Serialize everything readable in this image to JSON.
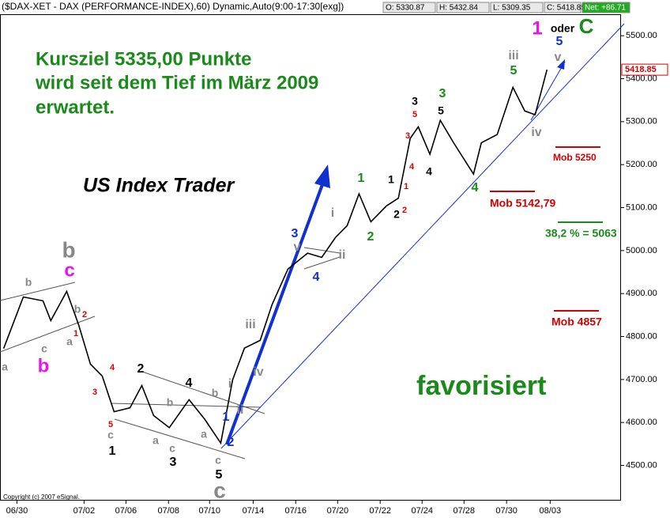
{
  "chart_data": {
    "type": "line",
    "title": "($DAX-XET - DAX (PERFORMANCE-INDEX),60) Dynamic,Auto(9:00-17:30[exg])",
    "quote": [
      "O: 5330.87",
      "H: 5432.84",
      "L: 5309.35",
      "C: 5418.85",
      "Net: +86.71"
    ],
    "last_label": "5418.85",
    "color": "#000000",
    "x": [
      -0.63,
      0.3,
      1.23,
      1.6,
      2.35,
      2.91,
      3.47,
      4.03,
      4.59,
      5.34,
      5.9,
      6.46,
      7.2,
      8.13,
      8.88,
      9.63,
      10.19,
      10.75,
      11.49,
      12.05,
      12.8,
      13.73,
      14.4,
      15.04,
      15.6,
      16.16,
      16.72,
      17.46,
      18.02,
      18.58,
      18.96,
      19.51,
      20.0,
      20.63,
      21.57,
      21.94,
      22.69,
      23.43,
      23.99,
      24.48,
      25.04
    ],
    "values": [
      4772,
      4892,
      4883,
      4837,
      4905,
      4828,
      4736,
      4708,
      4625,
      4634,
      4686,
      4616,
      4588,
      4653,
      4607,
      4552,
      4699,
      4773,
      4791,
      4874,
      4957,
      4994,
      4984,
      5030,
      5058,
      5132,
      5067,
      5104,
      5122,
      5261,
      5288,
      5224,
      5303,
      5251,
      5178,
      5251,
      5270,
      5380,
      5325,
      5316,
      5421
    ],
    "xlim": [
      -0.8,
      28.5
    ],
    "xticks": [
      {
        "value": 0,
        "label": "06/30"
      },
      {
        "value": 3.17,
        "label": "07/02"
      },
      {
        "value": 5.15,
        "label": "07/06"
      },
      {
        "value": 7.16,
        "label": "07/08"
      },
      {
        "value": 9.1,
        "label": "07/10"
      },
      {
        "value": 11.16,
        "label": "07/14"
      },
      {
        "value": 13.17,
        "label": "07/16"
      },
      {
        "value": 15.15,
        "label": "07/20"
      },
      {
        "value": 17.16,
        "label": "07/22"
      },
      {
        "value": 19.14,
        "label": "07/24"
      },
      {
        "value": 21.12,
        "label": "07/28"
      },
      {
        "value": 23.13,
        "label": "07/30"
      },
      {
        "value": 25.19,
        "label": "08/03"
      }
    ],
    "ylim": [
      4420,
      5550
    ],
    "yticks": [
      {
        "value": 4500,
        "label": "4500.00"
      },
      {
        "value": 4600,
        "label": "4600.00"
      },
      {
        "value": 4700,
        "label": "4700.00"
      },
      {
        "value": 4800,
        "label": "4800.00"
      },
      {
        "value": 4900,
        "label": "4900.00"
      },
      {
        "value": 5000,
        "label": "5000.00"
      },
      {
        "value": 5100,
        "label": "5100.00"
      },
      {
        "value": 5200,
        "label": "5200.00"
      },
      {
        "value": 5300,
        "label": "5300.00"
      },
      {
        "value": 5400,
        "label": "5400.00"
      },
      {
        "value": 5500,
        "label": "5500.00"
      }
    ],
    "notes": [
      {
        "text": "Kursziel 5335,00 Punkte",
        "color": "#1a8a1a"
      },
      {
        "text": "wird seit dem Tief im März 2009",
        "color": "#1a8a1a"
      },
      {
        "text": "erwartet.",
        "color": "#1a8a1a"
      },
      {
        "text": "US Index Trader",
        "color": "#000000"
      },
      {
        "text": "favorisiert",
        "color": "#1a8a1a"
      },
      {
        "text": "Mob 5250",
        "color": "#d40000"
      },
      {
        "text": "Mob 5142,79",
        "color": "#d40000"
      },
      {
        "text": "38,2 % = 5063",
        "color": "#1a8a1a"
      },
      {
        "text": "Mob 4857",
        "color": "#d40000"
      },
      {
        "text": "Copyright (c) 2007 eSignal.",
        "color": "#000000"
      }
    ],
    "annotations": [
      {
        "text": "a",
        "color": "#888888"
      },
      {
        "text": "b",
        "color": "#888888"
      },
      {
        "text": "c",
        "color": "#888888"
      },
      {
        "text": "a",
        "color": "#888888"
      },
      {
        "text": "b",
        "color": "#888888"
      },
      {
        "text": "c",
        "color": "#888888"
      },
      {
        "text": "a",
        "color": "#888888"
      },
      {
        "text": "b",
        "color": "#888888"
      },
      {
        "text": "c",
        "color": "#888888"
      },
      {
        "text": "a",
        "color": "#888888"
      },
      {
        "text": "b",
        "color": "#888888"
      },
      {
        "text": "c",
        "color": "#888888"
      },
      {
        "text": "1",
        "color": "#e00000"
      },
      {
        "text": "2",
        "color": "#e00000"
      },
      {
        "text": "3",
        "color": "#e00000"
      },
      {
        "text": "4",
        "color": "#e00000"
      },
      {
        "text": "5",
        "color": "#e00000"
      },
      {
        "text": "1",
        "color": "#000000"
      },
      {
        "text": "2",
        "color": "#000000"
      },
      {
        "text": "3",
        "color": "#000000"
      },
      {
        "text": "4",
        "color": "#000000"
      },
      {
        "text": "5",
        "color": "#000000"
      },
      {
        "text": "b",
        "color": "#ee11ee"
      },
      {
        "text": "c",
        "color": "#ee11ee"
      },
      {
        "text": "1",
        "color": "#ee11ee"
      },
      {
        "text": "b",
        "color": "#888888"
      },
      {
        "text": "c",
        "color": "#888888"
      },
      {
        "text": "1",
        "color": "#1030d0"
      },
      {
        "text": "2",
        "color": "#1030d0"
      },
      {
        "text": "3",
        "color": "#1030d0"
      },
      {
        "text": "4",
        "color": "#1030d0"
      },
      {
        "text": "5",
        "color": "#1030d0"
      },
      {
        "text": "i",
        "color": "#888888"
      },
      {
        "text": "ii",
        "color": "#888888"
      },
      {
        "text": "iii",
        "color": "#888888"
      },
      {
        "text": "iv",
        "color": "#888888"
      },
      {
        "text": "v",
        "color": "#888888"
      },
      {
        "text": "i",
        "color": "#888888"
      },
      {
        "text": "ii",
        "color": "#888888"
      },
      {
        "text": "iii",
        "color": "#888888"
      },
      {
        "text": "iv",
        "color": "#888888"
      },
      {
        "text": "v",
        "color": "#888888"
      },
      {
        "text": "1",
        "color": "#1a8a1a"
      },
      {
        "text": "2",
        "color": "#1a8a1a"
      },
      {
        "text": "3",
        "color": "#1a8a1a"
      },
      {
        "text": "4",
        "color": "#1a8a1a"
      },
      {
        "text": "5",
        "color": "#1a8a1a"
      },
      {
        "text": "C",
        "color": "#1a8a1a"
      },
      {
        "text": "1",
        "color": "#000000"
      },
      {
        "text": "2",
        "color": "#000000"
      },
      {
        "text": "3",
        "color": "#000000"
      },
      {
        "text": "4",
        "color": "#000000"
      },
      {
        "text": "5",
        "color": "#000000"
      },
      {
        "text": "oder",
        "color": "#000000"
      },
      {
        "text": "1",
        "color": "#e00000"
      },
      {
        "text": "2",
        "color": "#e00000"
      },
      {
        "text": "3",
        "color": "#e00000"
      },
      {
        "text": "4",
        "color": "#e00000"
      },
      {
        "text": "5",
        "color": "#e00000"
      }
    ]
  }
}
